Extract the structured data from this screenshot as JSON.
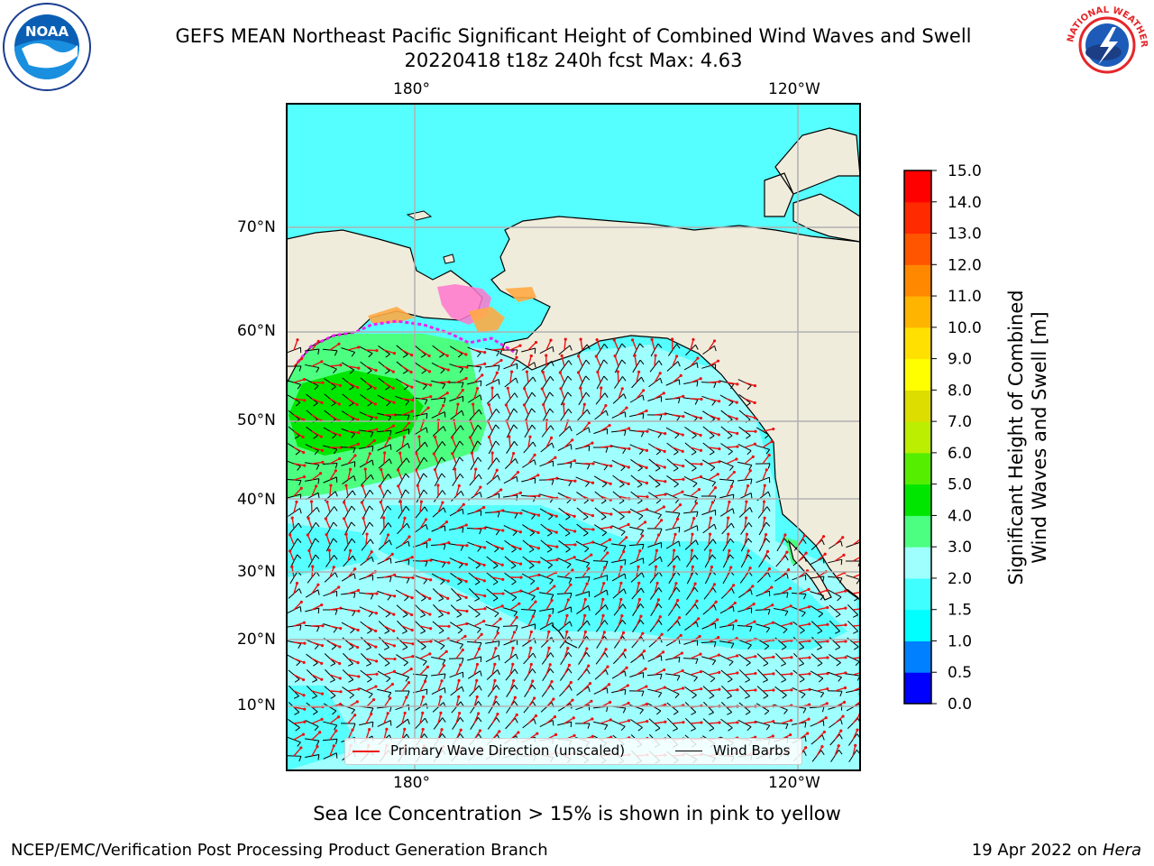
{
  "header": {
    "title": "GEFS MEAN Northeast Pacific Significant Height of Combined Wind Waves and Swell",
    "subtitle": "20220418 t18z 240h fcst   Max: 4.63"
  },
  "logos": {
    "noaa_text": "NOAA",
    "nws_text": "NATIONAL WEATHER SERVICE"
  },
  "map": {
    "lat_labels": [
      "70°N",
      "60°N",
      "50°N",
      "40°N",
      "30°N",
      "20°N",
      "10°N"
    ],
    "lon_labels": [
      "180°",
      "120°W"
    ],
    "colors": {
      "land": "#efecdc",
      "ocean_low": "#55ffff",
      "ocean_mid": "#9fffff",
      "wave_high": "#4dff80",
      "wave_peak": "#00e600",
      "wave_arrow": "#ee1111",
      "wind_barb": "#000000"
    }
  },
  "legend": {
    "wave": "Primary Wave Direction (unscaled)",
    "wind": "Wind Barbs"
  },
  "colorbar": {
    "label_line1": "Significant Height of Combined",
    "label_line2": "Wind Waves and Swell [m]",
    "ticks": [
      "0.0",
      "0.5",
      "1.0",
      "1.5",
      "2.0",
      "3.0",
      "4.0",
      "5.0",
      "6.0",
      "7.0",
      "8.0",
      "9.0",
      "10.0",
      "11.0",
      "12.0",
      "13.0",
      "14.0",
      "15.0"
    ],
    "colors": [
      "#0000ff",
      "#0080ff",
      "#00ffff",
      "#40ffff",
      "#9fffff",
      "#4dff80",
      "#00e600",
      "#55ee00",
      "#bbee00",
      "#dddd00",
      "#ffff00",
      "#ffe000",
      "#ffb400",
      "#ff8800",
      "#ff5500",
      "#ff2a00",
      "#ff0000"
    ]
  },
  "note": "Sea Ice Concentration > 15% is shown in pink to yellow",
  "footer": {
    "left": "NCEP/EMC/Verification Post Processing Product Generation Branch",
    "date": "19 Apr 2022 on ",
    "host": "Hera"
  }
}
